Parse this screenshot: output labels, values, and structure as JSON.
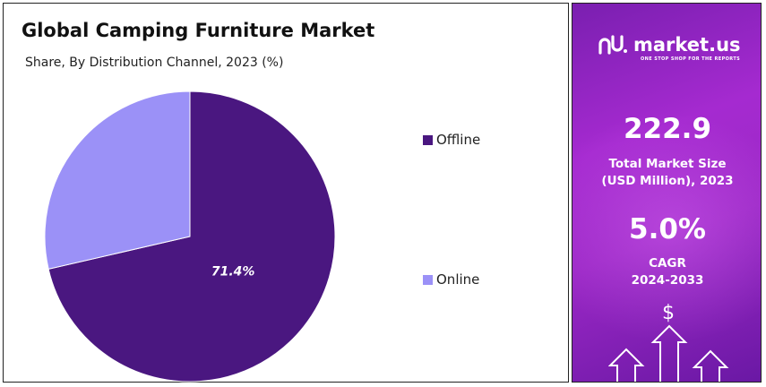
{
  "chart": {
    "title": "Global Camping Furniture Market",
    "subtitle": "Share, By Distribution Channel, 2023 (%)"
  },
  "chart_data": {
    "type": "pie",
    "title": "Global Camping Furniture Market",
    "subtitle": "Share, By Distribution Channel, 2023 (%)",
    "categories": [
      "Offline",
      "Online"
    ],
    "values": [
      71.4,
      28.6
    ],
    "data_labels": [
      "71.4%",
      ""
    ],
    "colors": [
      "#4a1780",
      "#9b91f7"
    ],
    "legend_position": "right"
  },
  "side_panel": {
    "brand_name": "market.us",
    "brand_tagline": "ONE STOP SHOP FOR THE REPORTS",
    "market_size_value": "222.9",
    "market_size_label_line1": "Total Market Size",
    "market_size_label_line2": "(USD Million), 2023",
    "cagr_value": "5.0%",
    "cagr_label_line1": "CAGR",
    "cagr_label_line2": "2024-2033",
    "currency_symbol": "$",
    "icons": [
      "market-us-logo-icon",
      "dollar-icon",
      "up-arrow-icon"
    ]
  }
}
